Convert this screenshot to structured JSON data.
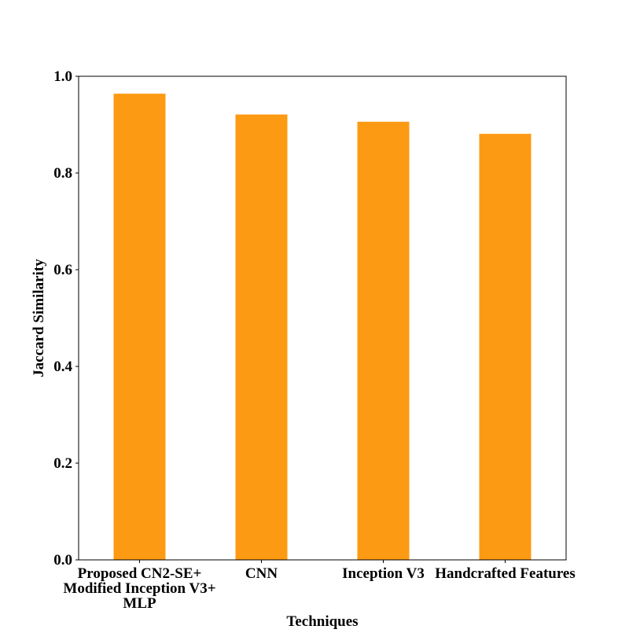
{
  "chart_data": {
    "type": "bar",
    "title": "",
    "xlabel": "Techniques",
    "ylabel": "Jaccard Similarity",
    "categories": [
      [
        "Proposed CN2-SE+",
        "Modified Inception V3+",
        "MLP"
      ],
      [
        "CNN"
      ],
      [
        "Inception V3"
      ],
      [
        "Handcrafted Features"
      ]
    ],
    "values": [
      0.964,
      0.921,
      0.906,
      0.881
    ],
    "ylim": [
      0.0,
      1.0
    ],
    "yticks": [
      "0.0",
      "0.2",
      "0.4",
      "0.6",
      "0.8",
      "1.0"
    ],
    "bar_color": "#fd9a13",
    "grid": false,
    "legend": "none"
  }
}
